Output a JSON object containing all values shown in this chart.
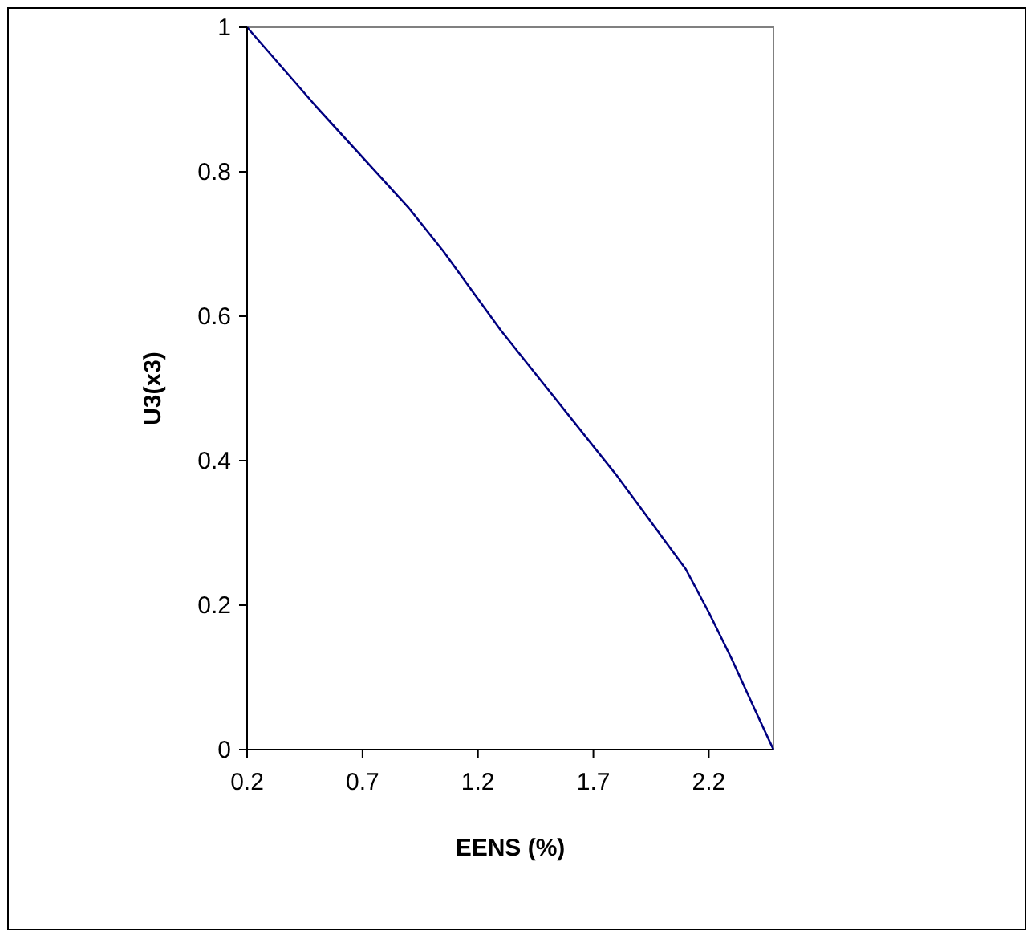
{
  "chart_data": {
    "type": "line",
    "xlabel": "EENS (%)",
    "ylabel": "U3(x3)",
    "x": [
      0.2,
      0.5,
      0.9,
      1.05,
      1.3,
      1.5,
      1.8,
      2.1,
      2.2,
      2.3,
      2.4,
      2.48
    ],
    "series": [
      {
        "color": "#000080",
        "values": [
          1,
          0.89,
          0.75,
          0.69,
          0.58,
          0.5,
          0.38,
          0.25,
          0.19,
          0.125,
          0.055,
          0
        ]
      }
    ],
    "xlim": [
      0.2,
      2.48
    ],
    "xticks": [
      0.2,
      0.7,
      1.2,
      1.7,
      2.2
    ],
    "ylim": [
      0,
      1
    ],
    "yticks": [
      0,
      0.2,
      0.4,
      0.6,
      0.8,
      1
    ],
    "grid": false,
    "line_style": "solid"
  }
}
